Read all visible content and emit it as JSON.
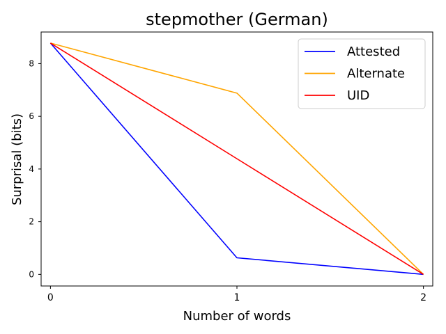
{
  "chart_data": {
    "type": "line",
    "title": "stepmother (German)",
    "xlabel": "Number of words",
    "ylabel": "Surprisal (bits)",
    "x": [
      0,
      1,
      2
    ],
    "xticks": [
      0,
      1,
      2
    ],
    "yticks": [
      0,
      2,
      4,
      6,
      8
    ],
    "xlim": [
      -0.05,
      2.05
    ],
    "ylim": [
      -0.44,
      9.2
    ],
    "grid": false,
    "legend_position": "top-right",
    "series": [
      {
        "name": "Attested",
        "color": "#0000ff",
        "values": [
          8.78,
          0.63,
          0.0
        ]
      },
      {
        "name": "Alternate",
        "color": "#ffa500",
        "values": [
          8.78,
          6.88,
          0.0
        ]
      },
      {
        "name": "UID",
        "color": "#ff0000",
        "values": [
          8.78,
          4.39,
          0.0
        ]
      }
    ]
  }
}
